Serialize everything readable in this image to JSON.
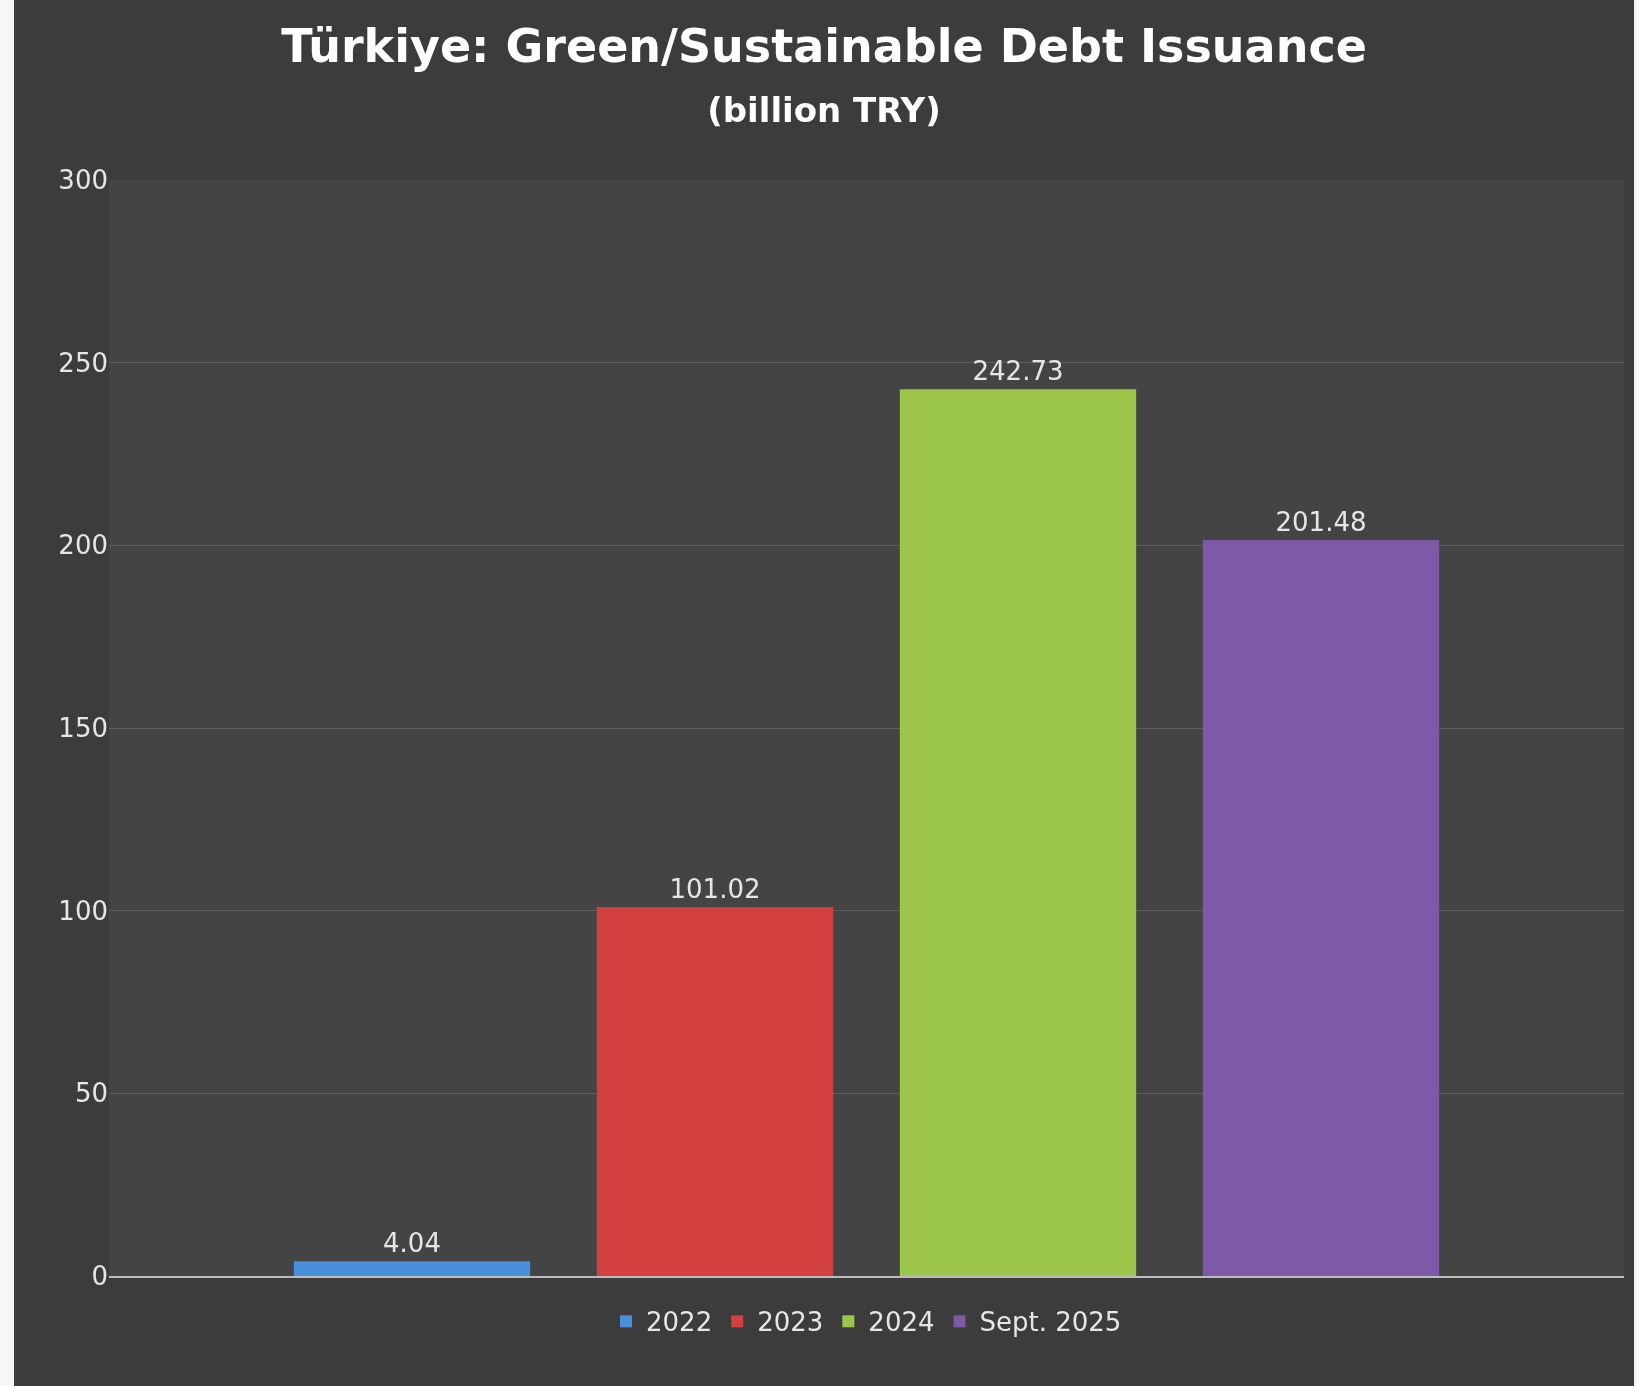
{
  "chart_data": {
    "type": "bar",
    "title": "Türkiye: Green/Sustainable Debt Issuance",
    "subtitle": "(billion TRY)",
    "categories": [
      null
    ],
    "series": [
      {
        "name": "2022",
        "color": "#4a8fdb",
        "values": [
          4.04
        ]
      },
      {
        "name": "2023",
        "color": "#d24040",
        "values": [
          101.02
        ]
      },
      {
        "name": "2024",
        "color": "#9cc64a",
        "values": [
          242.73
        ]
      },
      {
        "name": "Sept. 2025",
        "color": "#7c5aa8",
        "values": [
          201.48
        ]
      }
    ],
    "ylim": [
      0,
      300
    ],
    "yticks": [
      0,
      50,
      100,
      150,
      200,
      250,
      300
    ],
    "grid": "y",
    "legend": "bottom",
    "data_labels": true
  }
}
